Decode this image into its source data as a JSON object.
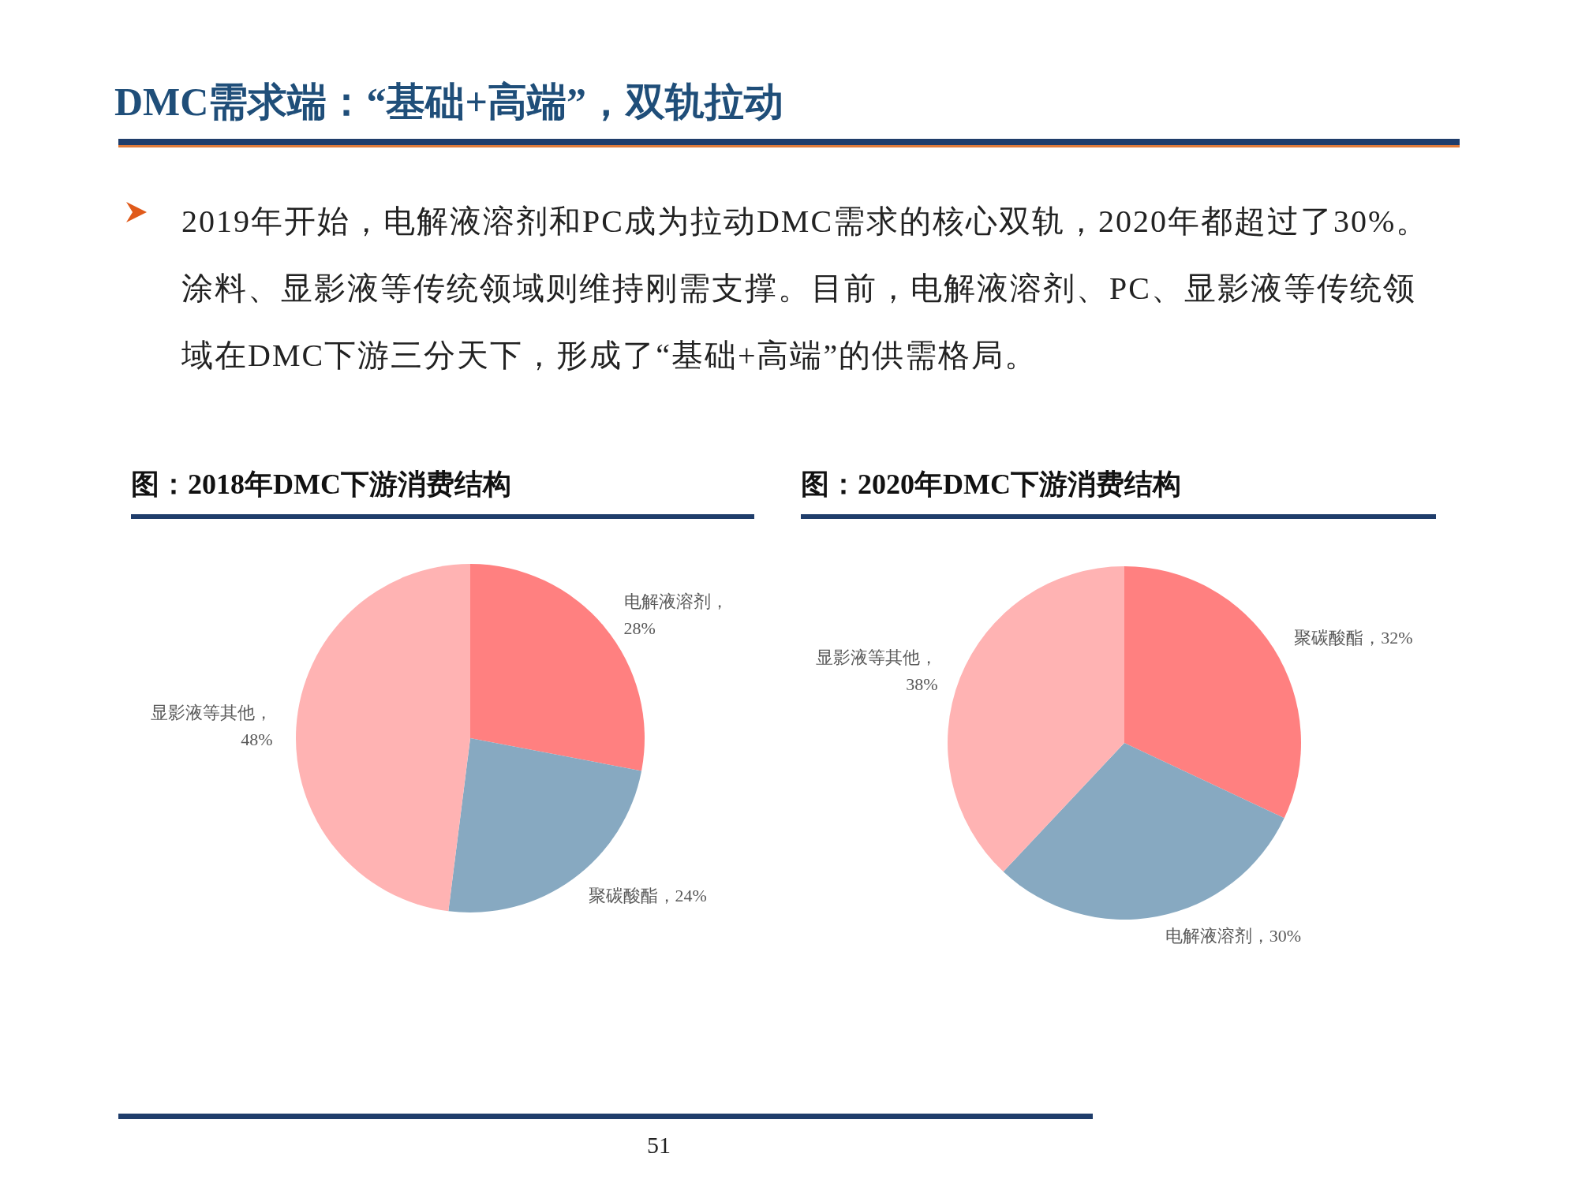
{
  "chart_data": [
    {
      "type": "pie",
      "title": "图：2018年DMC下游消费结构",
      "categories": [
        "电解液溶剂",
        "聚碳酸酯",
        "显影液等其他"
      ],
      "values": [
        28,
        24,
        48
      ],
      "colors": [
        "#ff8080",
        "#87a9c1",
        "#ffb3b3"
      ],
      "value_labels": [
        "，28%",
        "，24%",
        "，48%"
      ],
      "annotations": [
        "DMC需求端：“基础+高端”，双轨拉动",
        "2019年开始，电解液溶剂和PC成为拉动DMC需求的核心双轨，2020年都超过了30%。涂料、显影液等传统领域则维持刚需支撑。目前，电解液溶剂、PC、显影液等传统领域在DMC下游三分天下，形成了“基础+高端”的供需格局。",
        "51"
      ]
    },
    {
      "type": "pie",
      "title": "图：2020年DMC下游消费结构",
      "categories": [
        "聚碳酸酯",
        "电解液溶剂",
        "显影液等其他"
      ],
      "values": [
        32,
        30,
        38
      ],
      "colors": [
        "#ff8080",
        "#87a9c1",
        "#ffb3b3"
      ],
      "value_labels": [
        "，32%",
        "，30%",
        "，38%"
      ]
    }
  ]
}
